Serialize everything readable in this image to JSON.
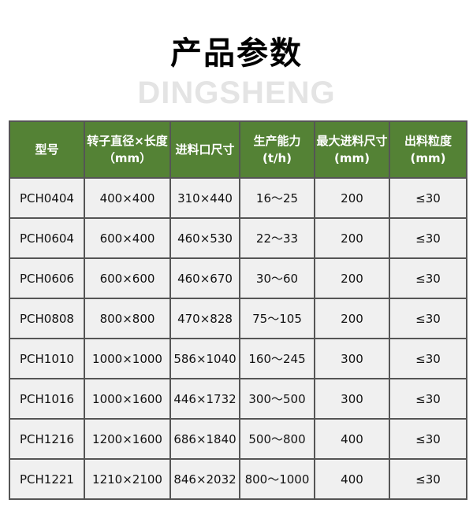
{
  "title": "产品参数",
  "watermark": "DINGSHENG",
  "colors": {
    "header_bg": "#548235",
    "cell_bg": "#f0f0f0",
    "border": "#555555"
  },
  "table": {
    "headers": [
      "型号",
      "转子直径×长度（mm）",
      "进料口尺寸",
      "生产能力(t/h)",
      "最大进料尺寸 (mm)",
      "出料粒度(mm)"
    ],
    "rows": [
      [
        "PCH0404",
        "400×400",
        "310×440",
        "16～25",
        "200",
        "≤30"
      ],
      [
        "PCH0604",
        "600×400",
        "460×530",
        "22～33",
        "200",
        "≤30"
      ],
      [
        "PCH0606",
        "600×600",
        "460×670",
        "30～60",
        "200",
        "≤30"
      ],
      [
        "PCH0808",
        "800×800",
        "470×828",
        "75～105",
        "200",
        "≤30"
      ],
      [
        "PCH1010",
        "1000×1000",
        "586×1040",
        "160～245",
        "300",
        "≤30"
      ],
      [
        "PCH1016",
        "1000×1600",
        "446×1732",
        "300～500",
        "300",
        "≤30"
      ],
      [
        "PCH1216",
        "1200×1600",
        "686×1840",
        "500～800",
        "400",
        "≤30"
      ],
      [
        "PCH1221",
        "1210×2100",
        "846×2032",
        "800～1000",
        "400",
        "≤30"
      ]
    ]
  }
}
